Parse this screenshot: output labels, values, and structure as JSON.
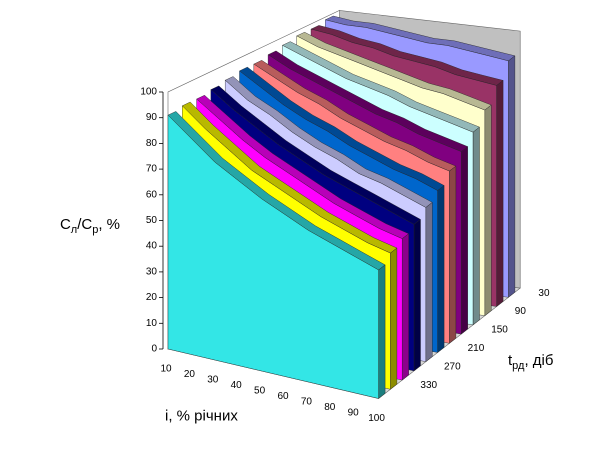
{
  "chart_data": {
    "type": "area3d",
    "ylabel": [
      "C",
      "л",
      "/C",
      "р",
      ", %"
    ],
    "xlabel": "i, % річних",
    "zlabel": [
      "t",
      "рд",
      ", діб"
    ],
    "categories": [
      10,
      20,
      30,
      40,
      50,
      60,
      70,
      80,
      90,
      100
    ],
    "zcategories": [
      30,
      null,
      90,
      null,
      150,
      null,
      210,
      null,
      270,
      null,
      330,
      null
    ],
    "ylim": [
      0,
      100
    ],
    "yticks": [
      0,
      10,
      20,
      30,
      40,
      50,
      60,
      70,
      80,
      90,
      100
    ],
    "series": [
      {
        "color": "#9999ff",
        "values": [
          99,
          98,
          98,
          97,
          96,
          95,
          95,
          94,
          93,
          92
        ]
      },
      {
        "color": "#993366",
        "values": [
          98,
          97,
          95,
          94,
          92,
          91,
          90,
          88,
          87,
          86
        ]
      },
      {
        "color": "#ffffcc",
        "values": [
          98,
          95,
          93,
          91,
          89,
          87,
          85,
          84,
          82,
          80
        ]
      },
      {
        "color": "#ccffff",
        "values": [
          97,
          94,
          91,
          88,
          86,
          84,
          81,
          79,
          77,
          75
        ]
      },
      {
        "color": "#800080",
        "values": [
          96,
          92,
          89,
          86,
          83,
          80,
          78,
          75,
          73,
          71
        ]
      },
      {
        "color": "#ff8080",
        "values": [
          95,
          91,
          87,
          84,
          80,
          77,
          74,
          72,
          69,
          67
        ]
      },
      {
        "color": "#0066cc",
        "values": [
          95,
          90,
          85,
          81,
          78,
          74,
          71,
          68,
          66,
          63
        ]
      },
      {
        "color": "#ccccff",
        "values": [
          94,
          88,
          84,
          79,
          75,
          72,
          68,
          66,
          63,
          60
        ]
      },
      {
        "color": "#000080",
        "values": [
          93,
          87,
          82,
          77,
          73,
          69,
          66,
          63,
          60,
          57
        ]
      },
      {
        "color": "#ff00ff",
        "values": [
          92,
          86,
          80,
          75,
          71,
          67,
          63,
          60,
          57,
          55
        ]
      },
      {
        "color": "#ffff00",
        "values": [
          92,
          85,
          79,
          73,
          69,
          65,
          61,
          58,
          55,
          53
        ]
      },
      {
        "color": "#33e6e6",
        "values": [
          91,
          84,
          77,
          72,
          67,
          63,
          59,
          56,
          53,
          50
        ]
      }
    ]
  }
}
